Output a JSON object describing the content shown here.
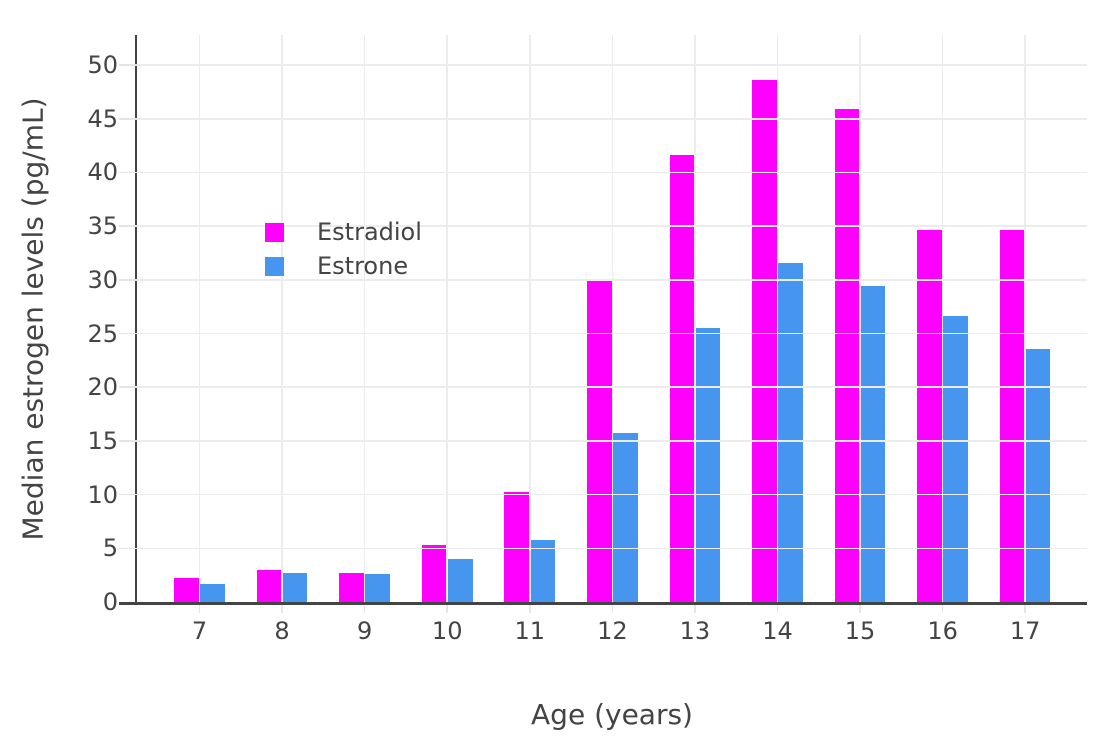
{
  "chart_data": {
    "type": "bar",
    "title": "",
    "categories": [
      "7",
      "8",
      "9",
      "10",
      "11",
      "12",
      "13",
      "14",
      "15",
      "16",
      "17"
    ],
    "series": [
      {
        "name": "Estradiol",
        "color": "#FF00FF",
        "values": [
          2.2,
          3.0,
          2.7,
          5.3,
          10.2,
          30.0,
          41.6,
          48.6,
          45.9,
          34.6,
          34.6
        ]
      },
      {
        "name": "Estrone",
        "color": "#4696F0",
        "values": [
          1.7,
          2.7,
          2.6,
          4.0,
          5.8,
          15.7,
          25.5,
          31.6,
          29.4,
          26.6,
          23.6
        ]
      }
    ],
    "xlabel": "Age (years)",
    "ylabel": "Median estrogen levels (pg/mL)",
    "ylim": [
      0,
      52.8
    ],
    "yticks": [
      0,
      5,
      10,
      15,
      20,
      25,
      30,
      35,
      40,
      45,
      50
    ],
    "grid": true,
    "legend_position": "inside-top-left"
  },
  "colors": {
    "background": "#FFFFFF",
    "grid": "#ECECEC",
    "axis": "#444444",
    "text": "#444444"
  }
}
